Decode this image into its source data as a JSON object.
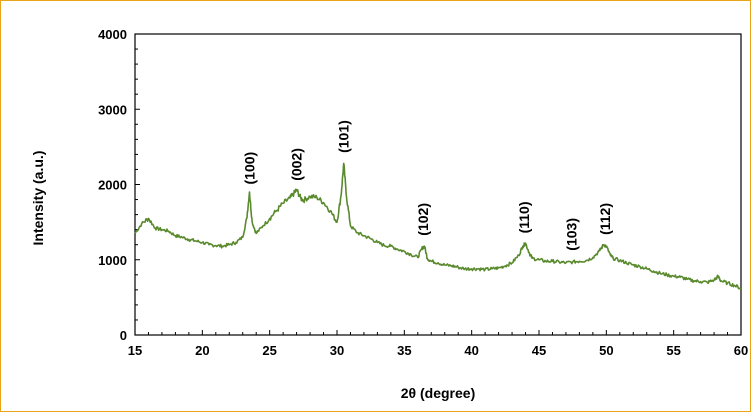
{
  "chart_data": {
    "type": "line",
    "xlabel": "2θ (degree)",
    "ylabel": "Intensity (a.u.)",
    "xlim": [
      15,
      60
    ],
    "ylim": [
      0,
      4000
    ],
    "x_ticks": [
      15,
      20,
      25,
      30,
      35,
      40,
      45,
      50,
      55,
      60
    ],
    "y_ticks": [
      0,
      1000,
      2000,
      3000,
      4000
    ],
    "grid": false,
    "line_color": "#5a8a2e",
    "series": [
      {
        "x": [
          15.0,
          15.5,
          16.0,
          16.5,
          17.0,
          17.5,
          18.0,
          18.5,
          19.0,
          19.5,
          20.0,
          20.5,
          21.0,
          21.5,
          22.0,
          22.5,
          23.0,
          23.3,
          23.5,
          23.7,
          24.0,
          24.5,
          25.0,
          25.5,
          26.0,
          26.5,
          26.8,
          27.0,
          27.3,
          27.5,
          28.0,
          28.5,
          29.0,
          29.5,
          30.0,
          30.3,
          30.5,
          30.7,
          31.0,
          31.5,
          32.0,
          32.5,
          33.0,
          33.5,
          34.0,
          34.5,
          35.0,
          35.5,
          36.0,
          36.3,
          36.5,
          36.7,
          37.0,
          37.5,
          38.0,
          38.5,
          39.0,
          39.5,
          40.0,
          40.5,
          41.0,
          41.5,
          42.0,
          42.5,
          43.0,
          43.5,
          43.8,
          44.0,
          44.3,
          44.5,
          45.0,
          45.5,
          46.0,
          46.5,
          47.0,
          47.5,
          48.0,
          48.5,
          49.0,
          49.5,
          49.8,
          50.0,
          50.3,
          50.5,
          51.0,
          51.5,
          52.0,
          52.5,
          53.0,
          53.5,
          54.0,
          54.5,
          55.0,
          55.5,
          56.0,
          56.5,
          57.0,
          57.5,
          58.0,
          58.3,
          58.5,
          59.0,
          59.5,
          60.0
        ],
        "y": [
          1350,
          1480,
          1550,
          1420,
          1400,
          1380,
          1320,
          1300,
          1270,
          1250,
          1230,
          1200,
          1190,
          1180,
          1200,
          1230,
          1300,
          1550,
          1900,
          1500,
          1350,
          1450,
          1550,
          1650,
          1750,
          1820,
          1880,
          1930,
          1820,
          1790,
          1840,
          1830,
          1760,
          1650,
          1500,
          1850,
          2280,
          1850,
          1450,
          1360,
          1320,
          1280,
          1230,
          1190,
          1180,
          1140,
          1110,
          1070,
          1030,
          1150,
          1180,
          1020,
          980,
          960,
          930,
          920,
          900,
          880,
          880,
          880,
          870,
          880,
          890,
          920,
          960,
          1060,
          1180,
          1220,
          1080,
          1020,
          1000,
          980,
          980,
          970,
          960,
          970,
          980,
          990,
          1030,
          1120,
          1200,
          1180,
          1060,
          1020,
          990,
          960,
          930,
          910,
          880,
          850,
          820,
          800,
          780,
          770,
          740,
          720,
          710,
          700,
          730,
          780,
          720,
          690,
          660,
          620
        ]
      }
    ],
    "annotations": [
      {
        "text": "(100)",
        "x": 23.5,
        "y": 1920
      },
      {
        "text": "(002)",
        "x": 27.0,
        "y": 1970
      },
      {
        "text": "(101)",
        "x": 30.5,
        "y": 2340
      },
      {
        "text": "(102)",
        "x": 36.4,
        "y": 1240
      },
      {
        "text": "(110)",
        "x": 43.9,
        "y": 1270
      },
      {
        "text": "(103)",
        "x": 47.4,
        "y": 1040
      },
      {
        "text": "(112)",
        "x": 49.9,
        "y": 1250
      }
    ]
  }
}
